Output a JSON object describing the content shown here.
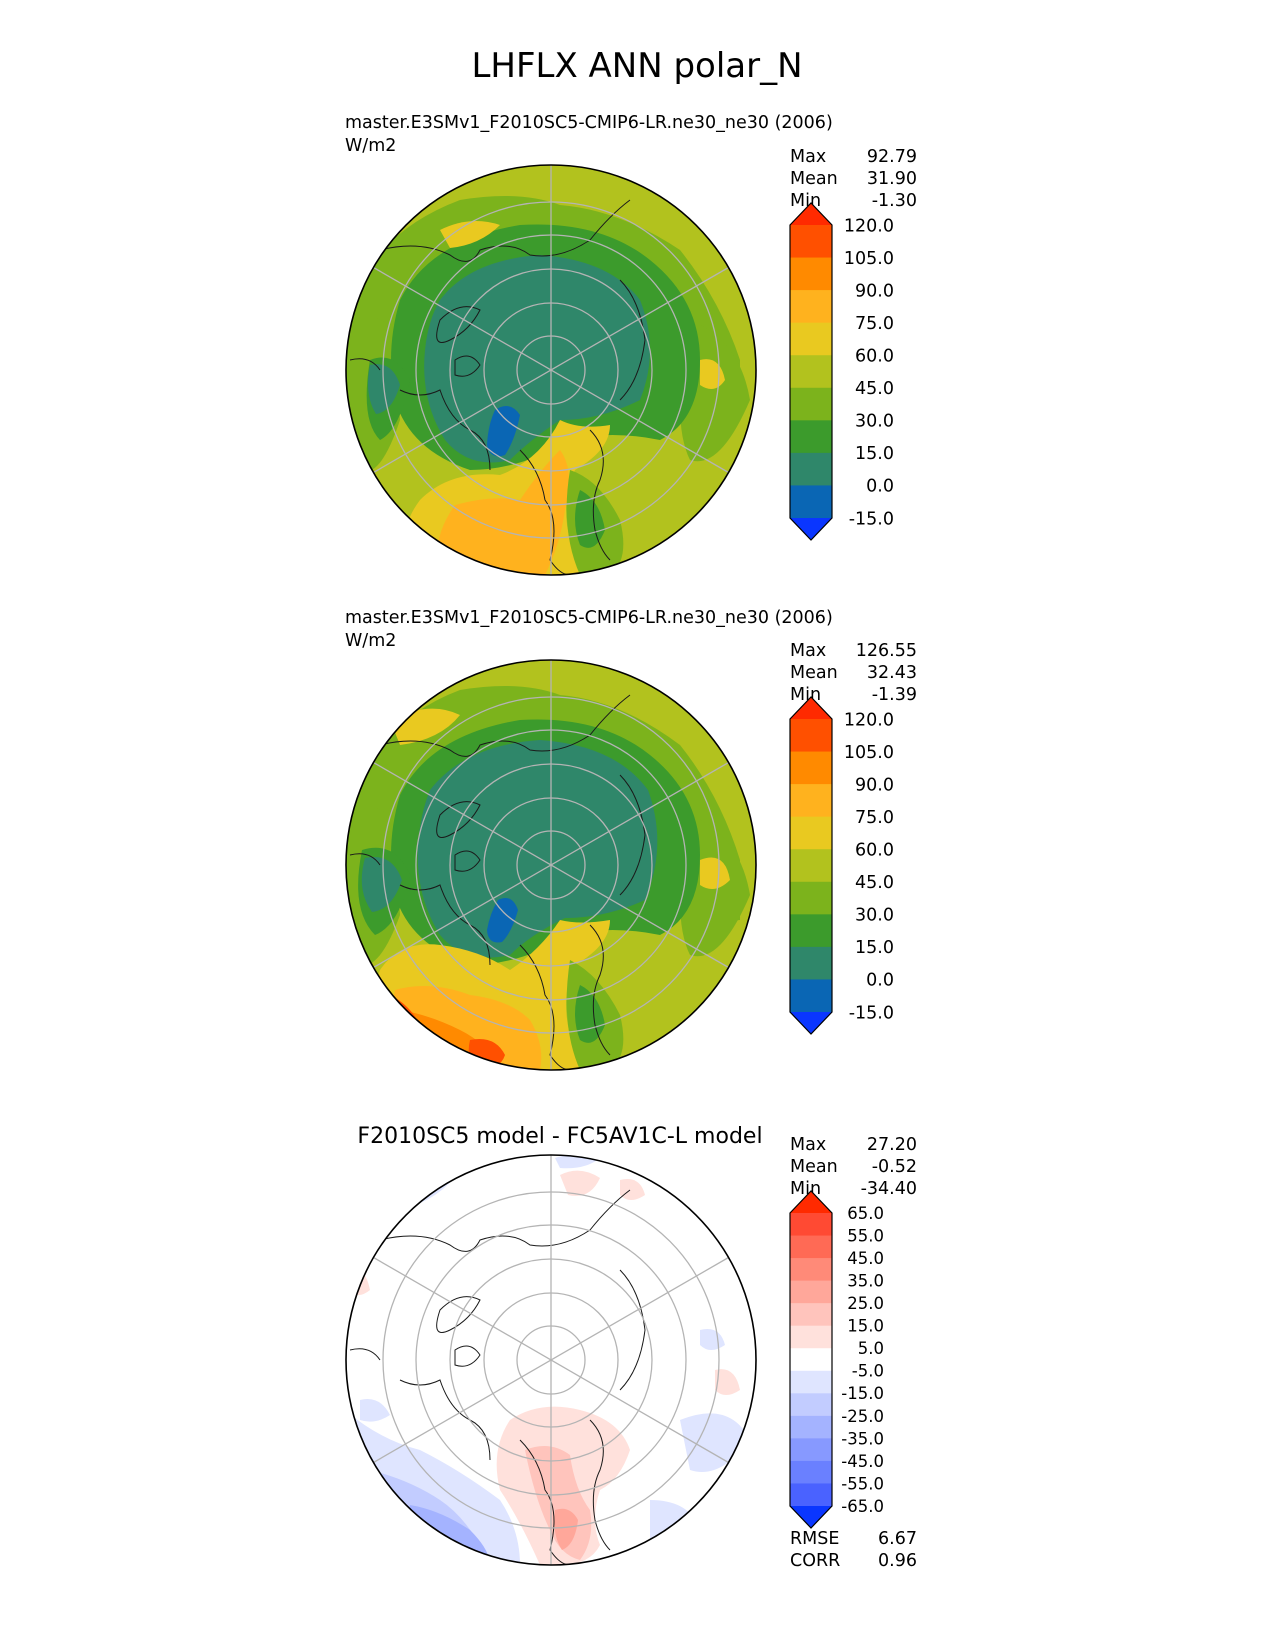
{
  "title": "LHFLX ANN polar_N",
  "panels": [
    {
      "title": "master.E3SMv1_F2010SC5-CMIP6-LR.ne30_ne30 (2006)",
      "units": "W/m2",
      "stats": [
        {
          "label": "Max",
          "value": "92.79"
        },
        {
          "label": "Mean",
          "value": "31.90"
        },
        {
          "label": "Min",
          "value": "-1.30"
        }
      ],
      "colorbar": {
        "labels": [
          "120.0",
          "105.0",
          "90.0",
          "75.0",
          "60.0",
          "45.0",
          "30.0",
          "15.0",
          "0.0",
          "-15.0"
        ],
        "top_color": "#ff2a00",
        "bottom_color": "#0a36ff",
        "colors": [
          "#ff5000",
          "#ff8a00",
          "#ffb21e",
          "#e9c920",
          "#b2c21e",
          "#7cb31c",
          "#3c9b2c",
          "#2f876a",
          "#0a66b4"
        ]
      },
      "map": {
        "type": "model"
      }
    },
    {
      "title": "master.E3SMv1_F2010SC5-CMIP6-LR.ne30_ne30 (2006)",
      "units": "W/m2",
      "stats": [
        {
          "label": "Max",
          "value": "126.55"
        },
        {
          "label": "Mean",
          "value": "32.43"
        },
        {
          "label": "Min",
          "value": "-1.39"
        }
      ],
      "colorbar": {
        "labels": [
          "120.0",
          "105.0",
          "90.0",
          "75.0",
          "60.0",
          "45.0",
          "30.0",
          "15.0",
          "0.0",
          "-15.0"
        ],
        "top_color": "#ff2a00",
        "bottom_color": "#0a36ff",
        "colors": [
          "#ff5000",
          "#ff8a00",
          "#ffb21e",
          "#e9c920",
          "#b2c21e",
          "#7cb31c",
          "#3c9b2c",
          "#2f876a",
          "#0a66b4"
        ]
      },
      "map": {
        "type": "model"
      }
    },
    {
      "title": "F2010SC5 model - FC5AV1C-L model",
      "units": "",
      "stats": [
        {
          "label": "Max",
          "value": "27.20"
        },
        {
          "label": "Mean",
          "value": "-0.52"
        },
        {
          "label": "Min",
          "value": "-34.40"
        }
      ],
      "colorbar": {
        "labels": [
          "65.0",
          "55.0",
          "45.0",
          "35.0",
          "25.0",
          "15.0",
          "5.0",
          "-5.0",
          "-15.0",
          "-25.0",
          "-35.0",
          "-45.0",
          "-55.0",
          "-65.0"
        ],
        "top_color": "#ff2a00",
        "bottom_color": "#0a36ff",
        "colors": [
          "#ff4a33",
          "#ff6a55",
          "#ff8a78",
          "#ffa79a",
          "#ffc4bc",
          "#ffe1dc",
          "#ffffff",
          "#dfe5ff",
          "#c2ccff",
          "#a4b3ff",
          "#8799ff",
          "#6a80ff",
          "#4a62ff"
        ]
      },
      "bottom_stats": [
        {
          "label": "RMSE",
          "value": "6.67"
        },
        {
          "label": "CORR",
          "value": "0.96"
        }
      ],
      "map": {
        "type": "diff"
      }
    }
  ],
  "chart_data": {
    "type": "heatmap",
    "title": "LHFLX ANN polar_N",
    "panels": [
      {
        "name": "master.E3SMv1_F2010SC5-CMIP6-LR.ne30_ne30 (2006)",
        "units": "W/m2",
        "max": 92.79,
        "mean": 31.9,
        "min": -1.3,
        "levels": [
          -15,
          0,
          15,
          30,
          45,
          60,
          75,
          90,
          105,
          120
        ]
      },
      {
        "name": "master.E3SMv1_F2010SC5-CMIP6-LR.ne30_ne30 (2006)",
        "units": "W/m2",
        "max": 126.55,
        "mean": 32.43,
        "min": -1.39,
        "levels": [
          -15,
          0,
          15,
          30,
          45,
          60,
          75,
          90,
          105,
          120
        ]
      },
      {
        "name": "F2010SC5 model - FC5AV1C-L model",
        "max": 27.2,
        "mean": -0.52,
        "min": -34.4,
        "rmse": 6.67,
        "corr": 0.96,
        "levels": [
          -65,
          -55,
          -45,
          -35,
          -25,
          -15,
          -5,
          5,
          15,
          25,
          35,
          45,
          55,
          65
        ]
      }
    ]
  }
}
